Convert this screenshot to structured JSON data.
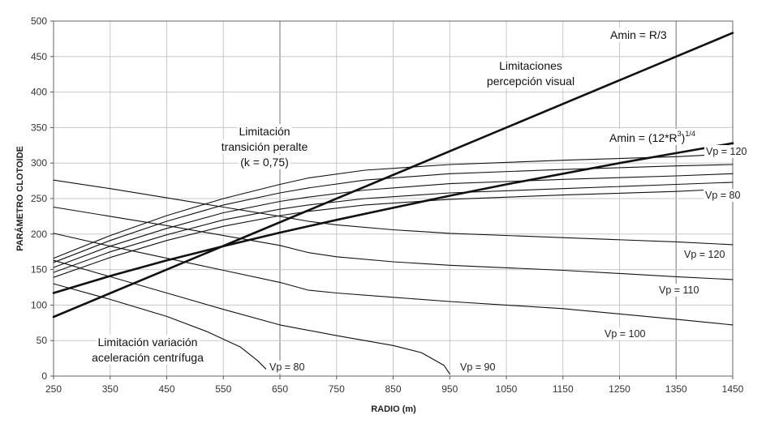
{
  "chart_data": {
    "type": "line",
    "xlabel": "RADIO (m)",
    "ylabel": "PARÁMETRO CLOTOIDE",
    "xlim": [
      250,
      1450
    ],
    "ylim": [
      0,
      500
    ],
    "x_ticks": [
      "250",
      "350",
      "450",
      "550",
      "650",
      "750",
      "850",
      "950",
      "1050",
      "1150",
      "1250",
      "1350",
      "1450"
    ],
    "y_ticks": [
      "0",
      "50",
      "100",
      "150",
      "200",
      "250",
      "300",
      "350",
      "400",
      "450",
      "500"
    ],
    "grid": true,
    "annotations": {
      "amin_r3": "Amin = R/3",
      "amin_formula": "Amin = (12*R",
      "amin_formula_sup3": "3",
      "amin_formula_close": ")",
      "amin_formula_sup14": "1/4",
      "percepcion_1": "Limitaciones",
      "percepcion_2": "percepción visual",
      "peralte_1": "Limitación",
      "peralte_2": "transición peralte",
      "peralte_3": "(k = 0,75)",
      "aceleracion_1": "Limitación variación",
      "aceleracion_2": "aceleración centrífuga"
    },
    "series": [
      {
        "style": "bold",
        "x": [
          250,
          1450
        ],
        "y": [
          83.3,
          483.3
        ]
      },
      {
        "style": "bold",
        "x": [
          250,
          350,
          450,
          550,
          650,
          750,
          850,
          950,
          1050,
          1150,
          1250,
          1350,
          1450
        ],
        "y": [
          117,
          141,
          163,
          183,
          202,
          220,
          237,
          254,
          270,
          285,
          300,
          314,
          328
        ]
      },
      {
        "name": "Vp = 120",
        "x": [
          250,
          350,
          450,
          550,
          650,
          700,
          800,
          950,
          1150,
          1350,
          1400
        ],
        "y": [
          166,
          198,
          226,
          250,
          270,
          279,
          290,
          298,
          304,
          309,
          311
        ]
      },
      {
        "x": [
          250,
          350,
          450,
          550,
          650,
          700,
          800,
          950,
          1150,
          1350,
          1450
        ],
        "y": [
          160,
          191,
          218,
          241,
          258,
          265,
          276,
          285,
          291,
          296,
          298
        ]
      },
      {
        "x": [
          250,
          350,
          450,
          550,
          650,
          700,
          800,
          950,
          1150,
          1350,
          1450
        ],
        "y": [
          153,
          183,
          208,
          230,
          246,
          252,
          262,
          271,
          277,
          282,
          285
        ]
      },
      {
        "x": [
          250,
          350,
          450,
          550,
          650,
          700,
          800,
          950,
          1150,
          1350,
          1450
        ],
        "y": [
          146,
          175,
          199,
          220,
          235,
          241,
          250,
          258,
          264,
          270,
          273
        ]
      },
      {
        "name": "Vp = 80",
        "x": [
          250,
          350,
          450,
          550,
          650,
          700,
          800,
          950,
          1150,
          1350,
          1400
        ],
        "y": [
          139,
          167,
          191,
          211,
          226,
          232,
          241,
          249,
          255,
          260,
          262
        ]
      },
      {
        "name": "Vp = 120",
        "x": [
          250,
          350,
          450,
          550,
          650,
          700,
          750,
          850,
          950,
          1150,
          1350,
          1450
        ],
        "y": [
          276,
          264,
          251,
          238,
          225,
          218,
          213,
          206,
          201,
          195,
          189,
          185
        ]
      },
      {
        "name": "Vp = 110",
        "x": [
          250,
          350,
          450,
          550,
          650,
          700,
          750,
          850,
          950,
          1150,
          1350,
          1450
        ],
        "y": [
          238,
          225,
          212,
          198,
          184,
          174,
          168,
          161,
          156,
          149,
          140,
          136
        ]
      },
      {
        "name": "Vp = 100",
        "x": [
          250,
          350,
          450,
          550,
          650,
          700,
          750,
          850,
          950,
          1150,
          1350,
          1450
        ],
        "y": [
          201,
          183,
          166,
          149,
          132,
          121,
          117,
          111,
          105,
          95,
          80,
          72
        ]
      },
      {
        "name": "Vp = 90",
        "x": [
          250,
          350,
          450,
          550,
          650,
          750,
          850,
          900,
          940,
          950
        ],
        "y": [
          163,
          140,
          117,
          94,
          72,
          57,
          43,
          33,
          15,
          3
        ]
      },
      {
        "name": "Vp = 80",
        "x": [
          250,
          350,
          450,
          520,
          580,
          610,
          625
        ],
        "y": [
          130,
          108,
          84,
          63,
          41,
          22,
          10
        ]
      }
    ]
  }
}
